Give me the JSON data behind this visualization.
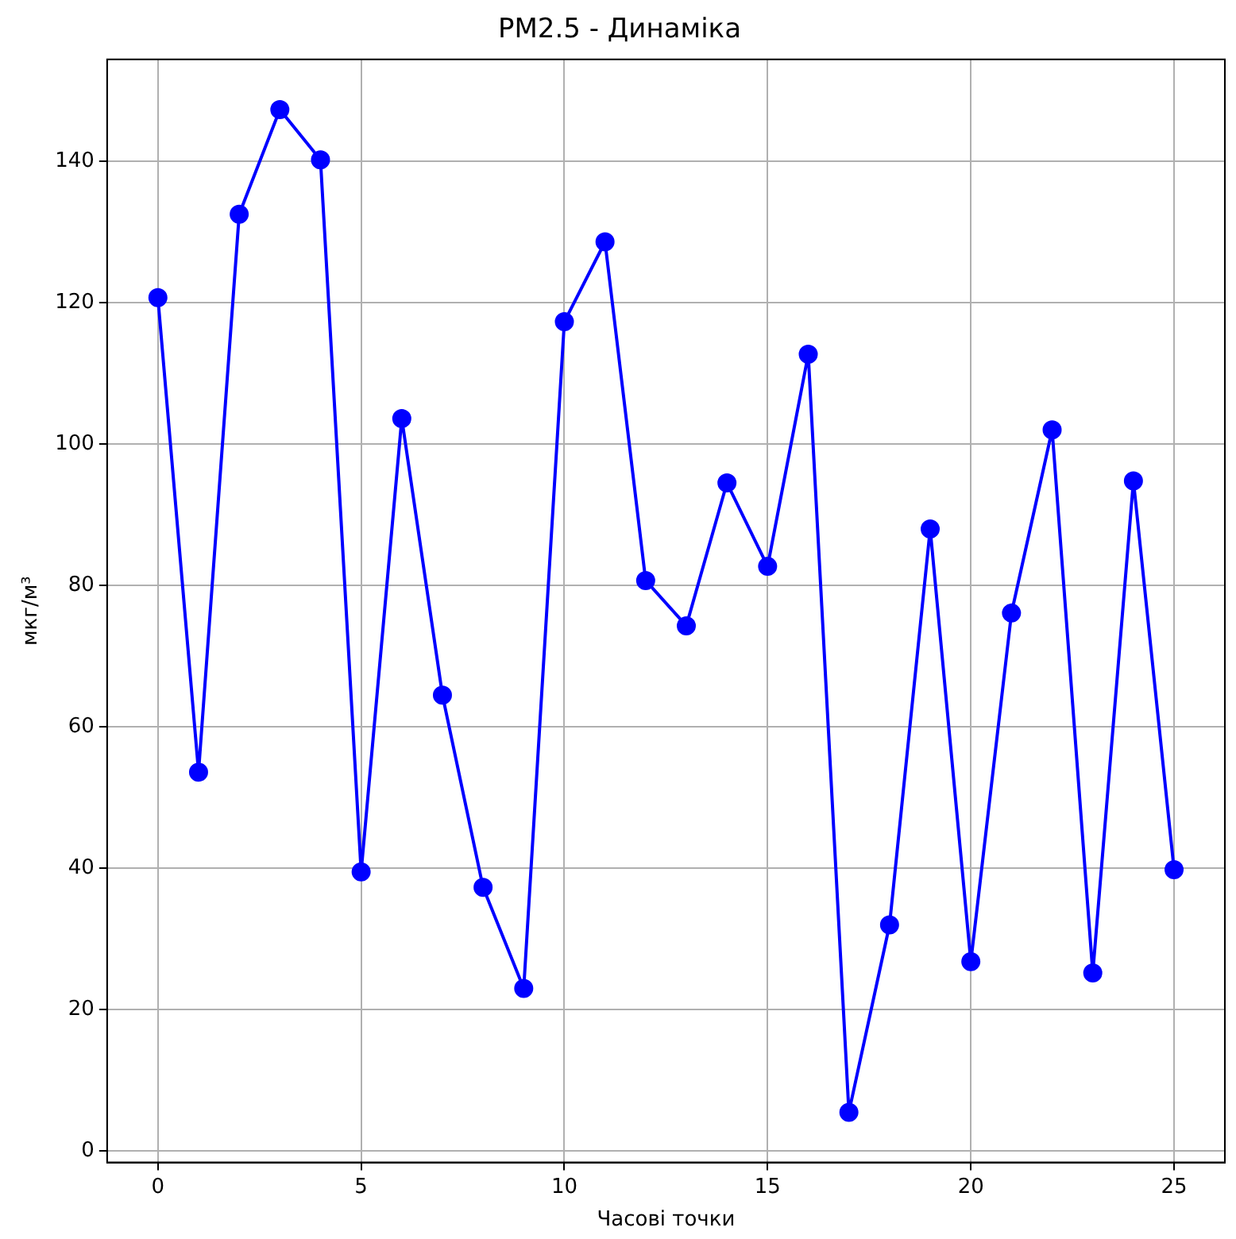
{
  "chart_data": {
    "type": "line",
    "title": "PM2.5 - Динаміка",
    "xlabel": "Часові точки",
    "ylabel": "мкг/м³",
    "x": [
      0,
      1,
      2,
      3,
      4,
      5,
      6,
      7,
      8,
      9,
      10,
      11,
      12,
      13,
      14,
      15,
      16,
      17,
      18,
      19,
      20,
      21,
      22,
      23,
      24,
      25
    ],
    "values": [
      120.7,
      53.6,
      132.5,
      147.3,
      140.2,
      39.5,
      103.6,
      64.5,
      37.3,
      23,
      117.3,
      128.6,
      80.7,
      74.3,
      94.5,
      82.7,
      112.7,
      5.5,
      32,
      88,
      26.8,
      76.1,
      102,
      25.2,
      94.8,
      39.8
    ],
    "color": "#0000ff",
    "marker": "circle",
    "line_style": "solid",
    "grid": true,
    "xlim": [
      -1.25,
      26.25
    ],
    "xticks": [
      0,
      5,
      10,
      15,
      20,
      25
    ],
    "ylim": [
      -1.6,
      154.4
    ],
    "yticks": [
      0,
      20,
      40,
      60,
      80,
      100,
      120,
      140
    ]
  }
}
